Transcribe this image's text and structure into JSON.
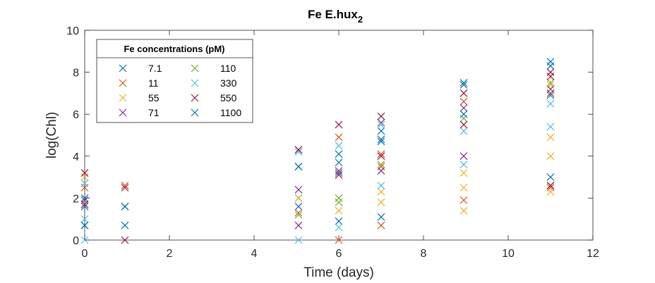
{
  "chart_data": {
    "type": "scatter",
    "title": "Fe E.hux",
    "title_subscript": "2",
    "xlabel": "Time (days)",
    "ylabel": "log(Chl)",
    "xlim": [
      0,
      12
    ],
    "ylim": [
      0,
      10
    ],
    "xticks": [
      "0",
      "2",
      "4",
      "6",
      "8",
      "10",
      "12"
    ],
    "yticks": [
      "0",
      "2",
      "4",
      "6",
      "8",
      "10"
    ],
    "grid": false,
    "marker": "x",
    "legend": {
      "title": "Fe concentrations (pM)",
      "placement": "top-left",
      "columns": 2
    },
    "series": [
      {
        "name": "7.1",
        "color": "#0072BD",
        "points": [
          [
            0,
            0.7
          ],
          [
            0,
            1.6
          ],
          [
            0,
            2.0
          ],
          [
            0.95,
            0.7
          ],
          [
            0.95,
            1.6
          ],
          [
            5.05,
            1.6
          ],
          [
            5.05,
            2.0
          ],
          [
            5.05,
            3.5
          ],
          [
            5.05,
            4.3
          ],
          [
            6,
            0.9
          ],
          [
            6,
            3.2
          ],
          [
            6,
            4.1
          ],
          [
            7,
            1.1
          ],
          [
            7,
            4.8
          ],
          [
            7,
            5.2
          ],
          [
            8.95,
            7.5
          ],
          [
            8.95,
            6.0
          ],
          [
            11,
            3.0
          ],
          [
            11,
            7.0
          ],
          [
            11,
            8.5
          ]
        ]
      },
      {
        "name": "11",
        "color": "#D95319",
        "points": [
          [
            0,
            2.5
          ],
          [
            0.95,
            2.6
          ],
          [
            5.05,
            1.3
          ],
          [
            6,
            0.0
          ],
          [
            6,
            4.9
          ],
          [
            7,
            0.7
          ],
          [
            7,
            3.5
          ],
          [
            7,
            4.1
          ],
          [
            8.95,
            1.9
          ],
          [
            8.95,
            6.6
          ],
          [
            11,
            2.5
          ],
          [
            11,
            7.0
          ]
        ]
      },
      {
        "name": "55",
        "color": "#EDB120",
        "points": [
          [
            0,
            3.0
          ],
          [
            5.05,
            2.0
          ],
          [
            6,
            1.4
          ],
          [
            7,
            1.8
          ],
          [
            7,
            2.3
          ],
          [
            8.95,
            1.4
          ],
          [
            8.95,
            2.5
          ],
          [
            8.95,
            3.2
          ],
          [
            11,
            2.3
          ],
          [
            11,
            4.0
          ],
          [
            11,
            4.9
          ],
          [
            11,
            7.4
          ]
        ]
      },
      {
        "name": "71",
        "color": "#7E2F8E",
        "points": [
          [
            0,
            1.9
          ],
          [
            5.05,
            0.7
          ],
          [
            5.05,
            2.4
          ],
          [
            6,
            3.3
          ],
          [
            7,
            3.3
          ],
          [
            7,
            5.6
          ],
          [
            8.95,
            4.0
          ],
          [
            8.95,
            6.3
          ],
          [
            11,
            2.6
          ],
          [
            11,
            7.2
          ]
        ]
      },
      {
        "name": "110",
        "color": "#77AC30",
        "points": [
          [
            5.05,
            1.2
          ],
          [
            6,
            1.8
          ],
          [
            6,
            2.0
          ],
          [
            7,
            3.6
          ],
          [
            8.95,
            5.8
          ],
          [
            11,
            7.5
          ]
        ]
      },
      {
        "name": "330",
        "color": "#4DBEEE",
        "points": [
          [
            0,
            0.0
          ],
          [
            0,
            1.0
          ],
          [
            0,
            2.7
          ],
          [
            5.05,
            0.0
          ],
          [
            5.05,
            4.2
          ],
          [
            6,
            0.6
          ],
          [
            6,
            4.5
          ],
          [
            7,
            2.6
          ],
          [
            7,
            5.5
          ],
          [
            8.95,
            5.2
          ],
          [
            8.95,
            3.6
          ],
          [
            11,
            5.4
          ],
          [
            11,
            6.5
          ]
        ]
      },
      {
        "name": "550",
        "color": "#A2142F",
        "points": [
          [
            0,
            3.2
          ],
          [
            0,
            1.7
          ],
          [
            0.95,
            0.0
          ],
          [
            0.95,
            2.5
          ],
          [
            5.05,
            4.3
          ],
          [
            6,
            3.1
          ],
          [
            6,
            5.5
          ],
          [
            7,
            4.0
          ],
          [
            7,
            5.9
          ],
          [
            8.95,
            7.0
          ],
          [
            8.95,
            5.5
          ],
          [
            11,
            2.6
          ],
          [
            11,
            8.0
          ],
          [
            11,
            7.8
          ]
        ]
      },
      {
        "name": "1100",
        "color": "#0072BD",
        "points": [
          [
            0,
            0.7
          ],
          [
            0.95,
            1.6
          ],
          [
            5.05,
            3.5
          ],
          [
            6,
            3.7
          ],
          [
            7,
            4.7
          ],
          [
            8.95,
            7.4
          ],
          [
            11,
            6.9
          ],
          [
            11,
            8.3
          ]
        ]
      }
    ]
  }
}
